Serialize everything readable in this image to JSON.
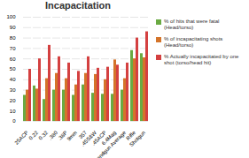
{
  "chart_data": {
    "type": "bar",
    "title": "Incapacitation",
    "categories": [
      "25ACP",
      "0.22",
      "0.32",
      ".380",
      ".38P",
      "9mm",
      "357",
      ".45S&W",
      ".45ACP",
      "6.4Mag",
      "Handgun Average",
      "Rifle",
      "Shotgun"
    ],
    "series": [
      {
        "name": "% of hits that were fatal\n(Head/torso)",
        "color": "#6aaa42",
        "values": [
          25,
          34,
          21,
          30,
          30,
          25,
          35,
          27,
          26,
          26,
          30,
          68,
          65
        ]
      },
      {
        "name": "% of incapacitating shots\n(Head/torso)",
        "color": "#d4742a",
        "values": [
          30,
          31,
          41,
          46,
          41,
          35,
          46,
          45,
          40,
          59,
          41,
          60,
          61
        ]
      },
      {
        "name": "% Actually incapacitated by one\nshot (torso/head hit)",
        "color": "#d44040",
        "values": [
          50,
          60,
          73,
          62,
          56,
          48,
          62,
          51,
          52,
          54,
          56,
          80,
          86
        ]
      }
    ],
    "ylim": [
      0,
      100
    ],
    "yticks": [
      0,
      10,
      20,
      30,
      40,
      50,
      60,
      70,
      80,
      90,
      100
    ],
    "grid": true,
    "legend": "right"
  }
}
